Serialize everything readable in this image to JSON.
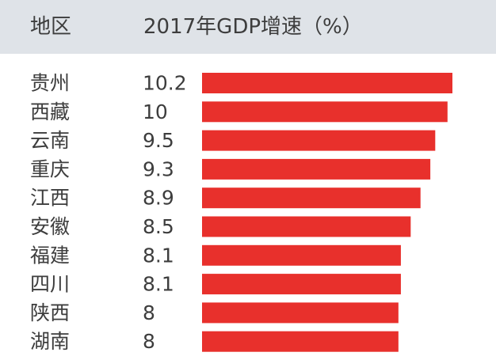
{
  "header": {
    "region_label": "地区",
    "value_label": "2017年GDP增速（%）"
  },
  "colors": {
    "bar": "#e8302c",
    "header_bg": "#dfe3e8"
  },
  "chart_data": {
    "type": "bar",
    "orientation": "horizontal",
    "categories": [
      "贵州",
      "西藏",
      "云南",
      "重庆",
      "江西",
      "安徽",
      "福建",
      "四川",
      "陕西",
      "湖南"
    ],
    "value_labels": [
      "10.2",
      "10",
      "9.5",
      "9.3",
      "8.9",
      "8.5",
      "8.1",
      "8.1",
      "8",
      "8"
    ],
    "values": [
      10.2,
      10,
      9.5,
      9.3,
      8.9,
      8.5,
      8.1,
      8.1,
      8,
      8
    ],
    "xlim": [
      0,
      10.2
    ],
    "grid": false
  }
}
